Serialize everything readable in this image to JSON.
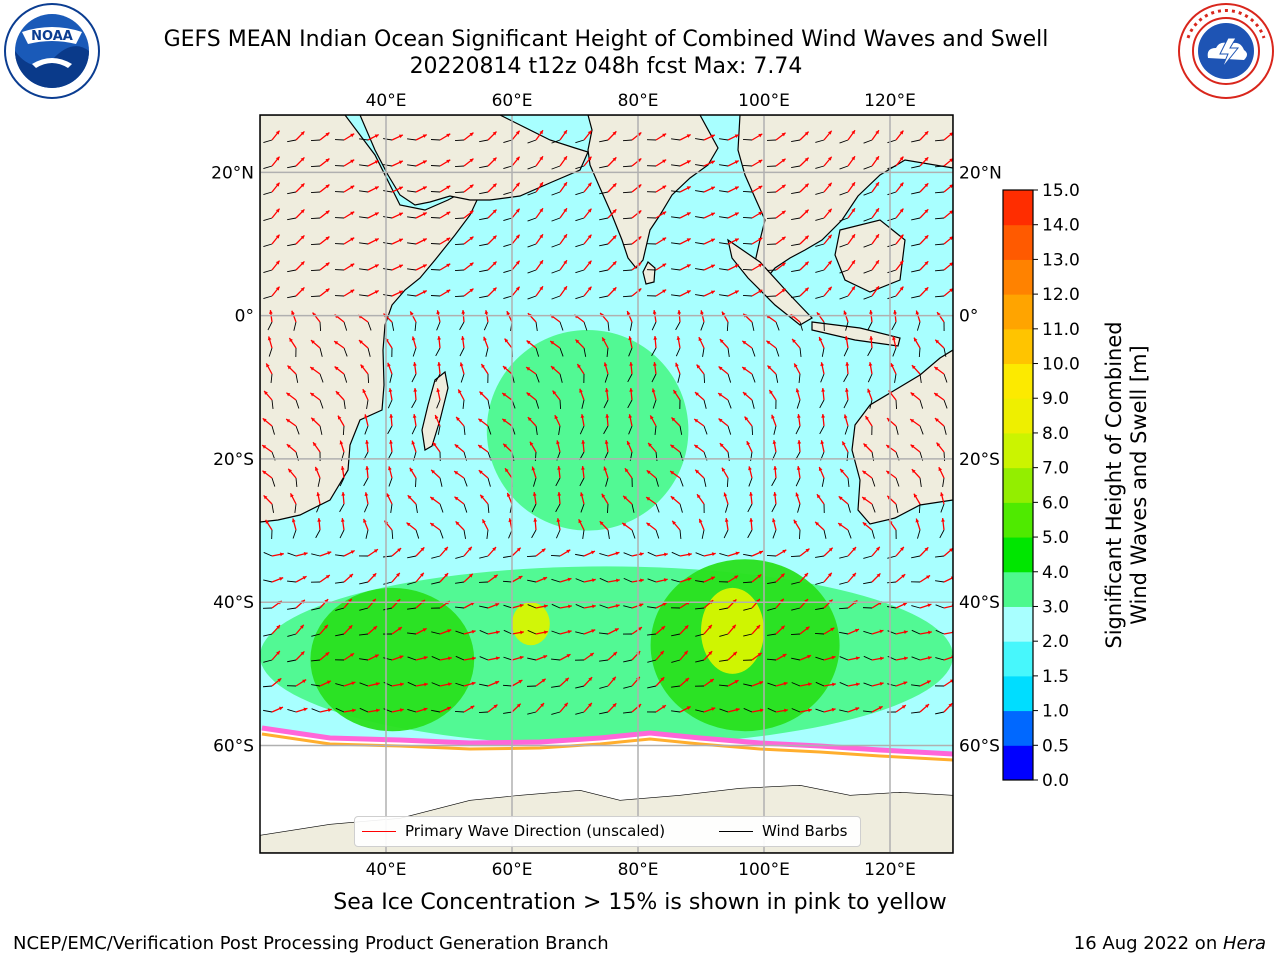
{
  "title": {
    "line1": "GEFS MEAN Indian Ocean Significant Height of Combined Wind Waves and Swell",
    "line2": "20220814 t12z 048h fcst   Max: 7.74"
  },
  "logos": {
    "left": "NOAA",
    "left_ring_text": "NATIONAL OCEANIC AND ATMOSPHERIC ADMINISTRATION · U.S. DEPARTMENT OF COMMERCE ·",
    "right_ring_text": "NATIONAL WEATHER SERVICE"
  },
  "map": {
    "lon_ticks_top": [
      "40°E",
      "60°E",
      "80°E",
      "100°E",
      "120°E"
    ],
    "lon_ticks_bottom": [
      "40°E",
      "60°E",
      "80°E",
      "100°E",
      "120°E"
    ],
    "lat_ticks_left": [
      "20°N",
      "0°",
      "20°S",
      "40°S",
      "60°S"
    ],
    "lat_ticks_right": [
      "20°N",
      "0°",
      "20°S",
      "40°S",
      "60°S"
    ],
    "lon_values": [
      40,
      60,
      80,
      100,
      120
    ],
    "lat_values": [
      20,
      0,
      -20,
      -40,
      -60
    ],
    "lon_range": [
      20,
      130
    ],
    "lat_range": [
      -75,
      28
    ],
    "colors": {
      "land": "#efedde",
      "ice": "#ffffff",
      "wave_arrow": "#ff0000",
      "wind_barb": "#000000",
      "grid": "#b0b0b0"
    },
    "wave_regions": [
      {
        "level": "2.0-3.0",
        "color": "#a8ffff",
        "lon": [
          20,
          130
        ],
        "lat": [
          -62,
          25
        ]
      },
      {
        "level": "3.0-4.0",
        "color": "#4df98e",
        "lon": [
          56,
          88
        ],
        "lat": [
          -30,
          -2
        ]
      },
      {
        "level": "3.0-4.0",
        "color": "#4df98e",
        "lon": [
          20,
          130
        ],
        "lat": [
          -60,
          -35
        ]
      },
      {
        "level": "4.0-5.0",
        "color": "#29e01e",
        "lon": [
          28,
          54
        ],
        "lat": [
          -58,
          -38
        ]
      },
      {
        "level": "4.0-5.0",
        "color": "#29e01e",
        "lon": [
          82,
          112
        ],
        "lat": [
          -58,
          -34
        ]
      },
      {
        "level": "6.0-7.0",
        "color": "#d8f500",
        "lon": [
          90,
          100
        ],
        "lat": [
          -50,
          -38
        ]
      },
      {
        "level": "6.0-7.0",
        "color": "#d8f500",
        "lon": [
          60,
          66
        ],
        "lat": [
          -46,
          -40
        ]
      }
    ]
  },
  "legend": {
    "wave_label": "Primary Wave Direction (unscaled)",
    "wind_label": "Wind Barbs",
    "wave_color": "#ff0000",
    "wind_color": "#000000"
  },
  "colorbar": {
    "label_line1": "Significant Height of Combined",
    "label_line2": "Wind Waves and Swell [m]",
    "ticks": [
      "0.0",
      "0.5",
      "1.0",
      "1.5",
      "2.0",
      "3.0",
      "4.0",
      "5.0",
      "6.0",
      "7.0",
      "8.0",
      "9.0",
      "10.0",
      "11.0",
      "12.0",
      "13.0",
      "14.0",
      "15.0"
    ],
    "colors": [
      "#0000ff",
      "#0068ff",
      "#00ddff",
      "#47f7fc",
      "#a8ffff",
      "#4df98e",
      "#00e600",
      "#4fea00",
      "#93ee00",
      "#cbf400",
      "#eeef00",
      "#fcea00",
      "#ffc400",
      "#ffa400",
      "#ff8200",
      "#ff5a00",
      "#ff2d00"
    ]
  },
  "footer": {
    "note": "Sea Ice Concentration > 15% is shown in pink to yellow",
    "left": "NCEP/EMC/Verification Post Processing Product Generation Branch",
    "right_date": "16 Aug 2022 on ",
    "right_host": "Hera"
  }
}
